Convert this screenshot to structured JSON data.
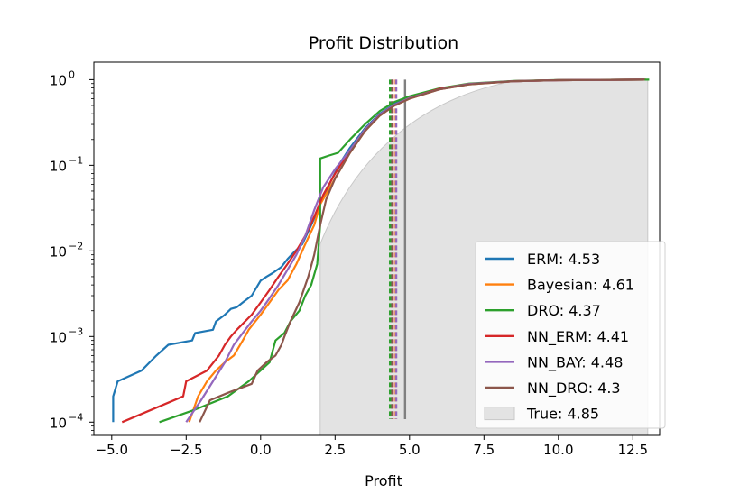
{
  "chart_data": {
    "type": "line",
    "title": "Profit Distribution",
    "xlabel": "Profit",
    "ylabel": "",
    "xlim": [
      -5.6,
      13.4
    ],
    "ylim": [
      7e-05,
      1.6
    ],
    "yscale": "log",
    "grid": false,
    "legend_position": "lower-right",
    "x_ticks": [
      -5.0,
      -2.5,
      0.0,
      2.5,
      5.0,
      7.5,
      10.0,
      12.5
    ],
    "x_tick_labels": [
      "−5.0",
      "−2.5",
      "0.0",
      "2.5",
      "5.0",
      "7.5",
      "10.0",
      "12.5"
    ],
    "y_ticks": [
      {
        "value": 1,
        "base": "10",
        "exp": "0"
      },
      {
        "value": 0.1,
        "base": "10",
        "exp": "−1"
      },
      {
        "value": 0.01,
        "base": "10",
        "exp": "−2"
      },
      {
        "value": 0.001,
        "base": "10",
        "exp": "−3"
      },
      {
        "value": 0.0001,
        "base": "10",
        "exp": "−4"
      }
    ],
    "true_distribution": {
      "label": "True: 4.85",
      "color": "#e3e3e3",
      "x_range": [
        2.0,
        13.0
      ],
      "mean": 4.85,
      "mean_line_color": "#808080"
    },
    "series": [
      {
        "name": "ERM: 4.53",
        "color": "#1f77b4",
        "mean": 4.53,
        "points": [
          [
            -4.95,
            0.0001
          ],
          [
            -4.95,
            0.0002
          ],
          [
            -4.8,
            0.0003
          ],
          [
            -4.0,
            0.0004
          ],
          [
            -3.5,
            0.0006
          ],
          [
            -3.1,
            0.0008
          ],
          [
            -2.3,
            0.0009
          ],
          [
            -2.2,
            0.0011
          ],
          [
            -1.6,
            0.0012
          ],
          [
            -1.5,
            0.0015
          ],
          [
            -1.2,
            0.0018
          ],
          [
            -1.0,
            0.0021
          ],
          [
            -0.8,
            0.0022
          ],
          [
            -0.6,
            0.0025
          ],
          [
            -0.3,
            0.003
          ],
          [
            0.0,
            0.0045
          ],
          [
            0.2,
            0.005
          ],
          [
            0.4,
            0.0055
          ],
          [
            0.7,
            0.0065
          ],
          [
            0.9,
            0.008
          ],
          [
            1.1,
            0.0095
          ],
          [
            1.4,
            0.012
          ],
          [
            1.7,
            0.02
          ],
          [
            2.0,
            0.035
          ],
          [
            2.4,
            0.07
          ],
          [
            2.7,
            0.11
          ],
          [
            3.0,
            0.16
          ],
          [
            3.5,
            0.27
          ],
          [
            4.0,
            0.4
          ],
          [
            4.5,
            0.52
          ],
          [
            5.0,
            0.62
          ],
          [
            6.0,
            0.78
          ],
          [
            7.0,
            0.89
          ],
          [
            8.5,
            0.96
          ],
          [
            10.0,
            0.985
          ],
          [
            12.9,
            1.0
          ]
        ]
      },
      {
        "name": "Bayesian: 4.61",
        "color": "#ff7f0e",
        "mean": 4.61,
        "points": [
          [
            -2.4,
            0.0001
          ],
          [
            -2.1,
            0.0002
          ],
          [
            -1.8,
            0.0003
          ],
          [
            -1.5,
            0.0004
          ],
          [
            -1.2,
            0.0005
          ],
          [
            -0.9,
            0.0006
          ],
          [
            -0.6,
            0.0009
          ],
          [
            -0.4,
            0.0012
          ],
          [
            0.0,
            0.0018
          ],
          [
            0.3,
            0.0025
          ],
          [
            0.6,
            0.0035
          ],
          [
            0.9,
            0.0045
          ],
          [
            1.2,
            0.007
          ],
          [
            1.5,
            0.012
          ],
          [
            1.8,
            0.02
          ],
          [
            2.0,
            0.035
          ],
          [
            2.5,
            0.07
          ],
          [
            3.0,
            0.14
          ],
          [
            3.5,
            0.25
          ],
          [
            4.0,
            0.38
          ],
          [
            4.5,
            0.5
          ],
          [
            5.0,
            0.6
          ],
          [
            6.0,
            0.77
          ],
          [
            7.0,
            0.88
          ],
          [
            8.5,
            0.96
          ],
          [
            10.0,
            0.985
          ],
          [
            12.95,
            1.0
          ]
        ]
      },
      {
        "name": "DRO: 4.37",
        "color": "#2ca02c",
        "mean": 4.37,
        "points": [
          [
            -3.4,
            0.0001
          ],
          [
            -2.2,
            0.00014
          ],
          [
            -1.1,
            0.0002
          ],
          [
            -0.4,
            0.0003
          ],
          [
            0.3,
            0.0005
          ],
          [
            0.5,
            0.0009
          ],
          [
            0.8,
            0.0011
          ],
          [
            1.0,
            0.0015
          ],
          [
            1.3,
            0.002
          ],
          [
            1.5,
            0.003
          ],
          [
            1.7,
            0.004
          ],
          [
            1.9,
            0.007
          ],
          [
            2.0,
            0.02
          ],
          [
            2.0,
            0.12
          ],
          [
            2.3,
            0.13
          ],
          [
            2.6,
            0.14
          ],
          [
            3.0,
            0.2
          ],
          [
            3.5,
            0.3
          ],
          [
            4.0,
            0.43
          ],
          [
            4.5,
            0.55
          ],
          [
            5.0,
            0.64
          ],
          [
            6.0,
            0.79
          ],
          [
            7.0,
            0.9
          ],
          [
            8.5,
            0.965
          ],
          [
            10.0,
            0.99
          ],
          [
            13.05,
            1.0
          ]
        ]
      },
      {
        "name": "NN_ERM: 4.41",
        "color": "#d62728",
        "mean": 4.41,
        "points": [
          [
            -4.65,
            0.0001
          ],
          [
            -2.6,
            0.0002
          ],
          [
            -2.5,
            0.0003
          ],
          [
            -1.8,
            0.0004
          ],
          [
            -1.4,
            0.0006
          ],
          [
            -1.2,
            0.0008
          ],
          [
            -1.0,
            0.001
          ],
          [
            -0.8,
            0.0012
          ],
          [
            -0.3,
            0.0018
          ],
          [
            0.0,
            0.0025
          ],
          [
            0.3,
            0.0035
          ],
          [
            0.6,
            0.005
          ],
          [
            0.9,
            0.007
          ],
          [
            1.2,
            0.01
          ],
          [
            1.5,
            0.015
          ],
          [
            1.8,
            0.025
          ],
          [
            2.1,
            0.045
          ],
          [
            2.5,
            0.08
          ],
          [
            3.0,
            0.15
          ],
          [
            3.5,
            0.26
          ],
          [
            4.0,
            0.39
          ],
          [
            4.5,
            0.51
          ],
          [
            5.0,
            0.61
          ],
          [
            6.0,
            0.78
          ],
          [
            7.0,
            0.89
          ],
          [
            8.5,
            0.96
          ],
          [
            10.0,
            0.985
          ],
          [
            12.9,
            1.0
          ]
        ]
      },
      {
        "name": "NN_BAY: 4.48",
        "color": "#9467bd",
        "mean": 4.48,
        "points": [
          [
            -2.5,
            0.0001
          ],
          [
            -2.0,
            0.00018
          ],
          [
            -1.6,
            0.0003
          ],
          [
            -1.2,
            0.0005
          ],
          [
            -0.9,
            0.0008
          ],
          [
            -0.6,
            0.0011
          ],
          [
            -0.3,
            0.0015
          ],
          [
            0.0,
            0.002
          ],
          [
            0.3,
            0.0028
          ],
          [
            0.6,
            0.004
          ],
          [
            0.9,
            0.006
          ],
          [
            1.2,
            0.009
          ],
          [
            1.5,
            0.015
          ],
          [
            1.8,
            0.03
          ],
          [
            2.1,
            0.055
          ],
          [
            2.5,
            0.09
          ],
          [
            3.0,
            0.15
          ],
          [
            3.5,
            0.26
          ],
          [
            4.0,
            0.39
          ],
          [
            4.5,
            0.51
          ],
          [
            5.0,
            0.61
          ],
          [
            6.0,
            0.77
          ],
          [
            7.0,
            0.89
          ],
          [
            8.5,
            0.96
          ],
          [
            10.0,
            0.985
          ],
          [
            12.9,
            1.0
          ]
        ]
      },
      {
        "name": "NN_DRO: 4.3",
        "color": "#8c564b",
        "mean": 4.3,
        "points": [
          [
            -2.05,
            0.0001
          ],
          [
            -1.7,
            0.00018
          ],
          [
            -1.1,
            0.00022
          ],
          [
            -0.3,
            0.00028
          ],
          [
            -0.1,
            0.0004
          ],
          [
            0.2,
            0.0005
          ],
          [
            0.5,
            0.0006
          ],
          [
            0.7,
            0.0008
          ],
          [
            0.8,
            0.001
          ],
          [
            1.0,
            0.0015
          ],
          [
            1.3,
            0.0025
          ],
          [
            1.6,
            0.005
          ],
          [
            1.8,
            0.009
          ],
          [
            2.0,
            0.02
          ],
          [
            2.2,
            0.04
          ],
          [
            2.5,
            0.07
          ],
          [
            3.0,
            0.14
          ],
          [
            3.5,
            0.25
          ],
          [
            4.0,
            0.38
          ],
          [
            4.5,
            0.5
          ],
          [
            5.0,
            0.6
          ],
          [
            6.0,
            0.77
          ],
          [
            7.0,
            0.88
          ],
          [
            8.5,
            0.96
          ],
          [
            10.0,
            0.985
          ],
          [
            12.9,
            1.0
          ]
        ]
      }
    ]
  }
}
